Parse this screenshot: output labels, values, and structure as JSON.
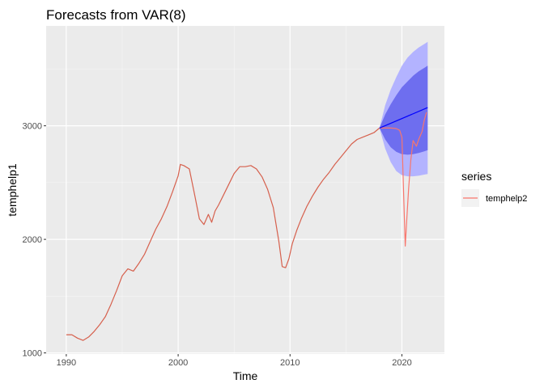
{
  "chart_data": {
    "type": "line",
    "title": "Forecasts from VAR(8)",
    "xlabel": "Time",
    "ylabel": "temphelp1",
    "xlim": [
      1988.2,
      2023.8
    ],
    "ylim": [
      990,
      3880
    ],
    "x_ticks": [
      1990,
      2000,
      2010,
      2020
    ],
    "x_tick_labels": [
      "1990",
      "2000",
      "2010",
      "2020"
    ],
    "y_ticks": [
      1000,
      2000,
      3000
    ],
    "y_tick_labels": [
      "1000",
      "2000",
      "3000"
    ],
    "grid": true,
    "legend": {
      "title": "series",
      "placement": "right",
      "entries": [
        {
          "name": "temphelp2",
          "color": "#f8766d"
        }
      ]
    },
    "series": [
      {
        "name": "temphelp1",
        "color": "#d6604d",
        "x": [
          1990.0,
          1990.5,
          1991.0,
          1991.5,
          1992.0,
          1992.5,
          1993.0,
          1993.5,
          1994.0,
          1994.5,
          1995.0,
          1995.5,
          1996.0,
          1996.5,
          1997.0,
          1997.5,
          1998.0,
          1998.5,
          1999.0,
          1999.5,
          2000.0,
          2000.2,
          2000.5,
          2001.0,
          2001.5,
          2001.9,
          2002.3,
          2002.7,
          2003.0,
          2003.3,
          2003.6,
          2004.0,
          2004.5,
          2005.0,
          2005.5,
          2006.0,
          2006.5,
          2007.0,
          2007.5,
          2008.0,
          2008.5,
          2009.0,
          2009.3,
          2009.6,
          2009.9,
          2010.2,
          2010.6,
          2011.0,
          2011.5,
          2012.0,
          2012.5,
          2013.0,
          2013.5,
          2014.0,
          2014.5,
          2015.0,
          2015.5,
          2016.0,
          2016.5,
          2017.0,
          2017.5,
          2018.0
        ],
        "values": [
          1160,
          1160,
          1130,
          1110,
          1140,
          1190,
          1250,
          1320,
          1430,
          1550,
          1680,
          1740,
          1720,
          1790,
          1870,
          1980,
          2090,
          2180,
          2290,
          2420,
          2560,
          2660,
          2650,
          2620,
          2380,
          2180,
          2130,
          2220,
          2150,
          2250,
          2300,
          2380,
          2480,
          2580,
          2640,
          2640,
          2650,
          2620,
          2550,
          2440,
          2280,
          1980,
          1760,
          1750,
          1830,
          1960,
          2080,
          2180,
          2290,
          2380,
          2460,
          2530,
          2590,
          2660,
          2720,
          2780,
          2840,
          2880,
          2900,
          2920,
          2940,
          2980
        ]
      },
      {
        "name": "temphelp2",
        "color": "#f8766d",
        "x": [
          2018.0,
          2018.5,
          2019.0,
          2019.5,
          2019.8,
          2020.0,
          2020.15,
          2020.3,
          2020.45,
          2020.6,
          2020.8,
          2021.0,
          2021.3,
          2021.5,
          2021.8,
          2022.0,
          2022.2
        ],
        "values": [
          2980,
          2980,
          2980,
          2975,
          2960,
          2900,
          2400,
          1940,
          2200,
          2450,
          2700,
          2870,
          2820,
          2880,
          2950,
          3050,
          3120
        ]
      },
      {
        "name": "forecast",
        "color": "#0000ff",
        "x": [
          2018.0,
          2022.3
        ],
        "values": [
          2980,
          3160
        ]
      }
    ],
    "intervals": [
      {
        "level": 95,
        "color": "#b3b3ff",
        "x": [
          2018.0,
          2018.5,
          2019.0,
          2019.5,
          2020.0,
          2020.5,
          2021.0,
          2021.5,
          2022.0,
          2022.3
        ],
        "lower": [
          2980,
          2800,
          2680,
          2600,
          2565,
          2555,
          2555,
          2560,
          2570,
          2575
        ],
        "upper": [
          2980,
          3180,
          3320,
          3430,
          3530,
          3600,
          3650,
          3690,
          3720,
          3740
        ]
      },
      {
        "level": 80,
        "color": "#6e6eef",
        "x": [
          2018.0,
          2018.5,
          2019.0,
          2019.5,
          2020.0,
          2020.5,
          2021.0,
          2021.5,
          2022.0,
          2022.3
        ],
        "lower": [
          2980,
          2880,
          2810,
          2770,
          2750,
          2745,
          2750,
          2760,
          2775,
          2785
        ],
        "upper": [
          2980,
          3100,
          3190,
          3270,
          3340,
          3390,
          3440,
          3480,
          3510,
          3530
        ]
      }
    ]
  }
}
